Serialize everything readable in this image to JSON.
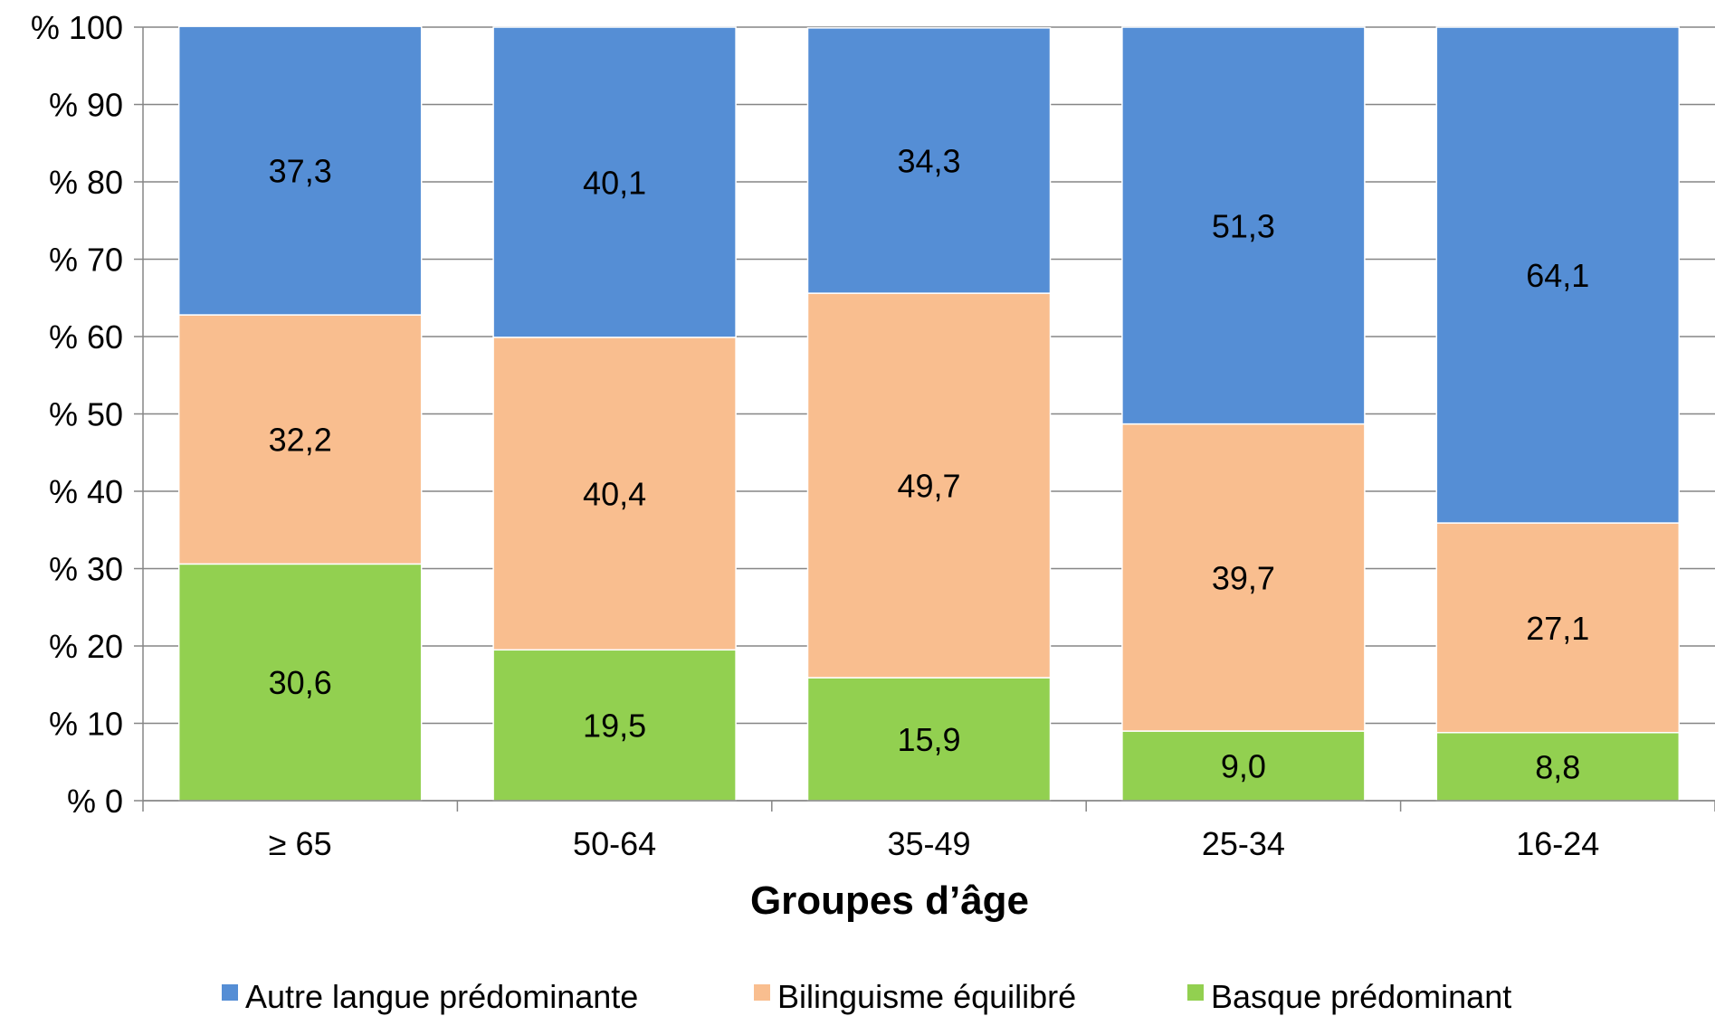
{
  "chart_data": {
    "type": "bar",
    "stacked": true,
    "categories": [
      "≥ 65",
      "50-64",
      "35-49",
      "25-34",
      "16-24"
    ],
    "series": [
      {
        "name": "Basque prédominant",
        "color": "#92d050",
        "values": [
          30.6,
          19.5,
          15.9,
          9.0,
          8.8
        ],
        "labels": [
          "30,6",
          "19,5",
          "15,9",
          "9,0",
          "8,8"
        ]
      },
      {
        "name": "Bilinguisme équilibré",
        "color": "#f9be8f",
        "values": [
          32.2,
          40.4,
          49.7,
          39.7,
          27.1
        ],
        "labels": [
          "32,2",
          "40,4",
          "49,7",
          "39,7",
          "27,1"
        ]
      },
      {
        "name": "Autre langue prédominante",
        "color": "#558ed5",
        "values": [
          37.3,
          40.1,
          34.3,
          51.3,
          64.1
        ],
        "labels": [
          "37,3",
          "40,1",
          "34,3",
          "51,3",
          "64,1"
        ]
      }
    ],
    "legend_order": [
      "Autre langue prédominante",
      "Bilinguisme équilibré",
      "Basque prédominant"
    ],
    "title": "",
    "xlabel": "Groupes d’âge",
    "ylabel": "",
    "ylim": [
      0,
      100
    ],
    "yticks": [
      0,
      10,
      20,
      30,
      40,
      50,
      60,
      70,
      80,
      90,
      100
    ],
    "ytick_labels": [
      "% 0",
      "% 10",
      "% 20",
      "% 30",
      "% 40",
      "% 50",
      "% 60",
      "% 70",
      "% 80",
      "% 90",
      "% 100"
    ],
    "grid": true,
    "legend_position": "bottom"
  }
}
